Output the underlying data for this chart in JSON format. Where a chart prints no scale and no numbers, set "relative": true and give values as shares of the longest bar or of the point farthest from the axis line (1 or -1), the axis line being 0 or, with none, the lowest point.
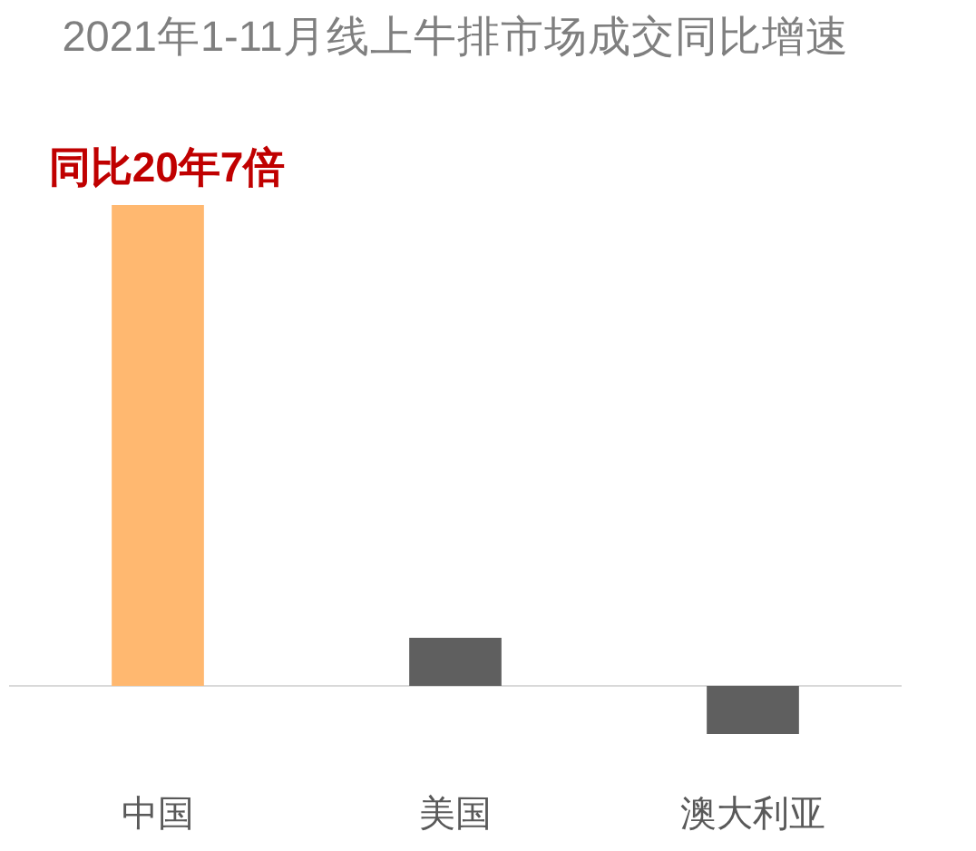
{
  "chart_data": {
    "type": "bar",
    "title": "2021年1-11月线上牛排市场成交同比增速",
    "categories": [
      "中国",
      "美国",
      "澳大利亚"
    ],
    "values": [
      1,
      0.1,
      -0.1
    ],
    "colors": [
      "#ffb870",
      "#5f5f5f",
      "#5f5f5f"
    ],
    "relative": true,
    "annotations": [
      {
        "text": "同比20年7倍",
        "x": "中国",
        "y": 1
      }
    ]
  }
}
